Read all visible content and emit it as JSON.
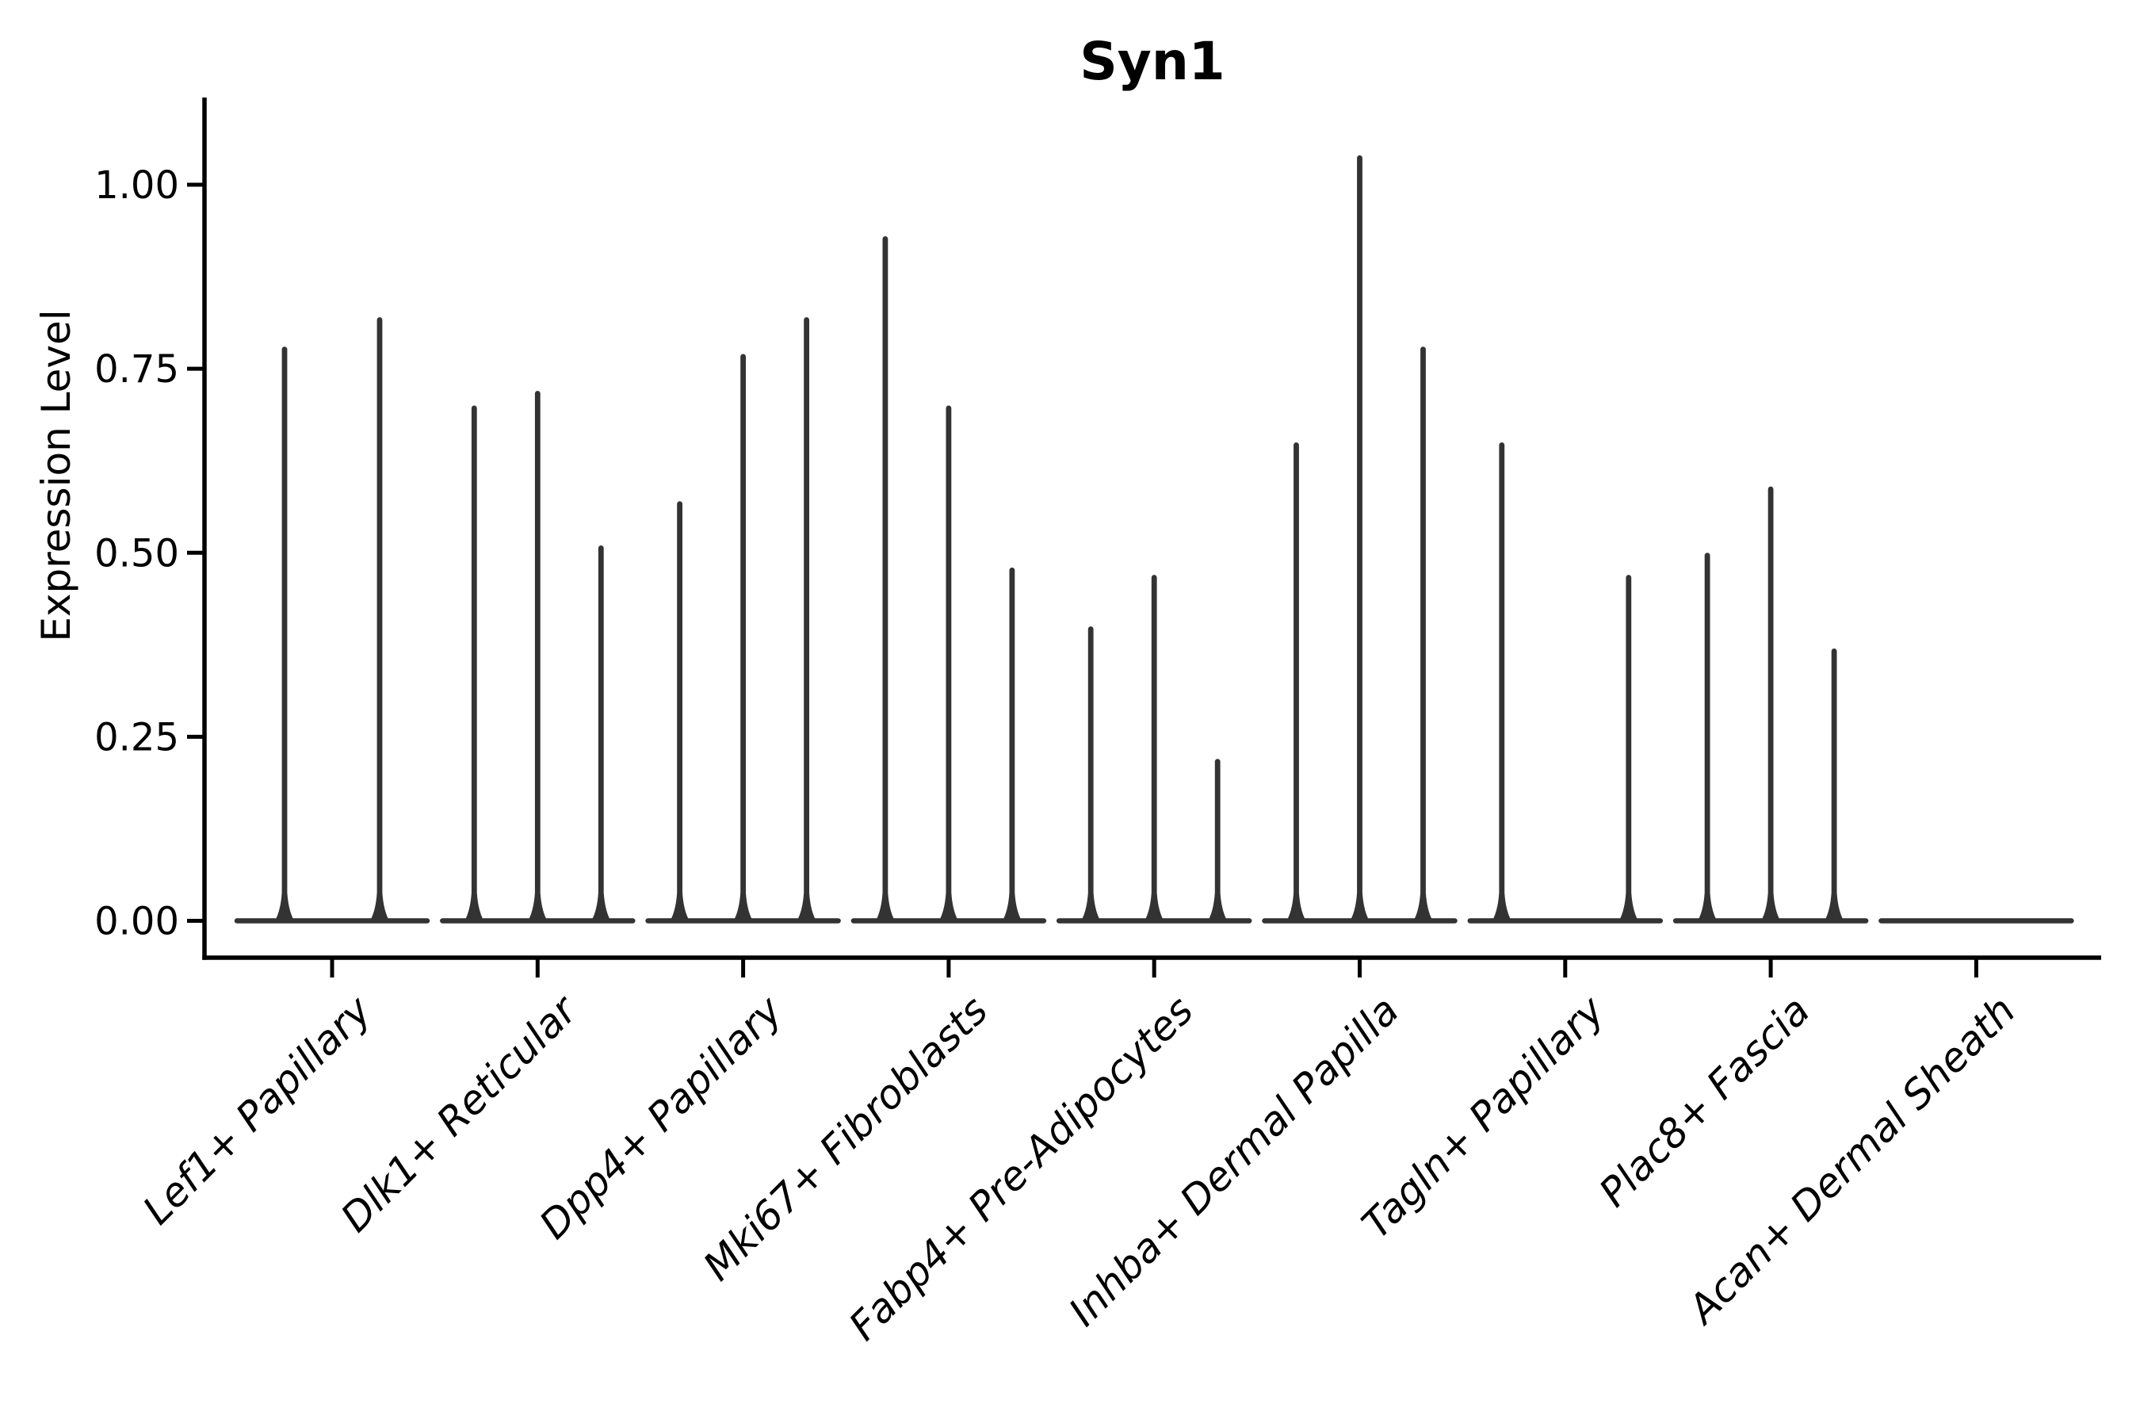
{
  "chart_data": {
    "type": "violin",
    "title": "Syn1",
    "ylabel": "Expression Level",
    "xlabel": "",
    "legend": "none",
    "grid": false,
    "background": "#ffffff",
    "yticks": [
      "1.00",
      "0.75",
      "0.50",
      "0.25",
      "0.00"
    ],
    "ytick_values": [
      1.0,
      0.75,
      0.5,
      0.25,
      0.0
    ],
    "ylim": [
      -0.05,
      1.12
    ],
    "categories": [
      "Lef1+ Papillary",
      "Dlk1+ Reticular",
      "Dpp4+ Papillary",
      "Mki67+ Fibroblasts",
      "Fabp4+ Pre-Adipocytes",
      "Inhba+ Dermal Papilla",
      "Tagln+ Papillary",
      "Plac8+ Fascia",
      "Acan+ Dermal Sheath"
    ],
    "groups": [
      {
        "category": "Lef1+ Papillary",
        "violin_peaks": [
          0.78,
          0.82
        ]
      },
      {
        "category": "Dlk1+ Reticular",
        "violin_peaks": [
          0.7,
          0.72,
          0.51
        ]
      },
      {
        "category": "Dpp4+ Papillary",
        "violin_peaks": [
          0.57,
          0.77,
          0.82
        ]
      },
      {
        "category": "Mki67+ Fibroblasts",
        "violin_peaks": [
          0.93,
          0.7,
          0.48
        ]
      },
      {
        "category": "Fabp4+ Pre-Adipocytes",
        "violin_peaks": [
          0.4,
          0.47,
          0.22
        ]
      },
      {
        "category": "Inhba+ Dermal Papilla",
        "violin_peaks": [
          0.65,
          1.04,
          0.78
        ]
      },
      {
        "category": "Tagln+ Papillary",
        "violin_peaks": [
          0.65,
          0,
          0.47
        ]
      },
      {
        "category": "Plac8+ Fascia",
        "violin_peaks": [
          0.5,
          0.59,
          0.37
        ]
      },
      {
        "category": "Acan+ Dermal Sheath",
        "violin_peaks": []
      }
    ],
    "colors": {
      "violin": "#333333",
      "axis": "#000000",
      "text": "#000000",
      "background": "#ffffff"
    }
  }
}
